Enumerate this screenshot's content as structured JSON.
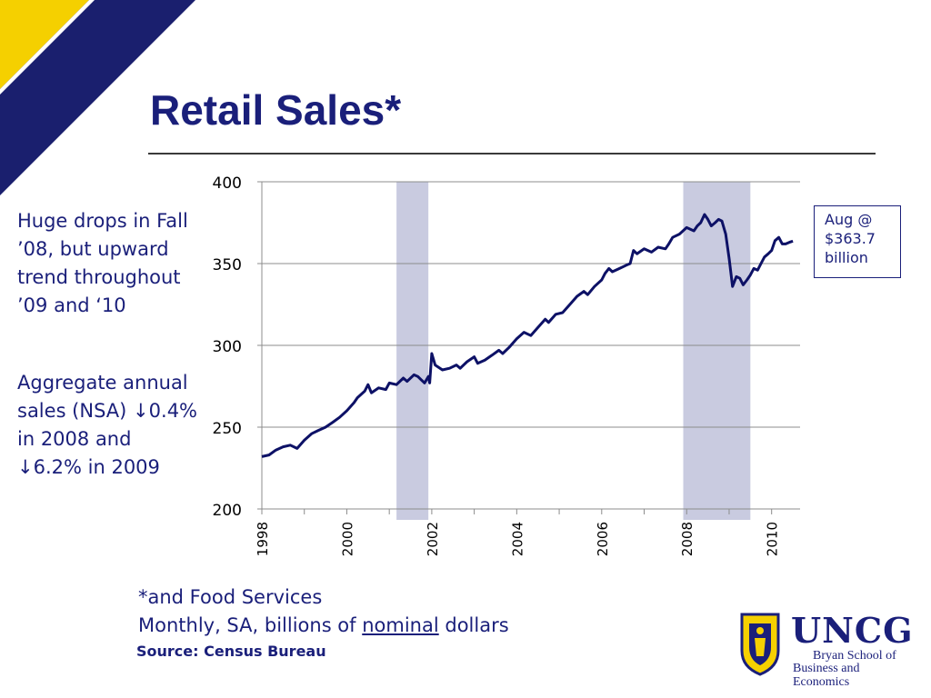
{
  "slide": {
    "title": "Retail Sales*",
    "note1": "Huge drops in Fall ’08, but upward trend throughout ’09 and ‘10",
    "note2_prefix": "Aggregate annual sales (NSA) ",
    "note2_val1": "0.4%",
    "note2_mid": " in 2008 and ",
    "note2_val2": "6.2% in 2009",
    "callout": "Aug @ $363.7 billion",
    "footnote_line1": "*and Food Services",
    "footnote_line2_prefix": "Monthly, SA, billions of ",
    "footnote_line2_under": "nominal",
    "footnote_line2_suffix": " dollars",
    "source": "Source:  Census Bureau",
    "logo_name": "UNCG",
    "logo_sub1": "Bryan School of",
    "logo_sub2": "Business and Economics",
    "colors": {
      "title": "#1a1f7a",
      "line": "#0d1166",
      "recession": "#c9cbe0",
      "corner_yellow": "#f5d000",
      "corner_navy": "#1a1f6e"
    }
  },
  "chart_data": {
    "type": "line",
    "title": "",
    "xlabel": "",
    "ylabel": "",
    "ylim": [
      200,
      400
    ],
    "yticks": [
      "200",
      "250",
      "300",
      "350",
      "400"
    ],
    "xlim": [
      1998,
      2010.67
    ],
    "xticks": [
      "1998",
      "2000",
      "2002",
      "2004",
      "2006",
      "2008",
      "2010"
    ],
    "grid": true,
    "shaded_periods": [
      [
        2001.17,
        2001.92
      ],
      [
        2007.92,
        2009.5
      ]
    ],
    "series": [
      {
        "points": [
          [
            1998.0,
            232
          ],
          [
            1998.17,
            233
          ],
          [
            1998.33,
            236
          ],
          [
            1998.5,
            238
          ],
          [
            1998.67,
            239
          ],
          [
            1998.83,
            237
          ],
          [
            1999.0,
            242
          ],
          [
            1999.17,
            246
          ],
          [
            1999.33,
            248
          ],
          [
            1999.5,
            250
          ],
          [
            1999.67,
            253
          ],
          [
            1999.83,
            256
          ],
          [
            2000.0,
            260
          ],
          [
            2000.17,
            265
          ],
          [
            2000.25,
            268
          ],
          [
            2000.42,
            272
          ],
          [
            2000.5,
            276
          ],
          [
            2000.58,
            271
          ],
          [
            2000.75,
            274
          ],
          [
            2000.92,
            273
          ],
          [
            2001.0,
            277
          ],
          [
            2001.17,
            276
          ],
          [
            2001.33,
            280
          ],
          [
            2001.42,
            278
          ],
          [
            2001.58,
            282
          ],
          [
            2001.67,
            281
          ],
          [
            2001.75,
            279
          ],
          [
            2001.83,
            277
          ],
          [
            2001.92,
            281
          ],
          [
            2001.95,
            277
          ],
          [
            2002.0,
            295
          ],
          [
            2002.08,
            288
          ],
          [
            2002.25,
            285
          ],
          [
            2002.42,
            286
          ],
          [
            2002.58,
            288
          ],
          [
            2002.67,
            286
          ],
          [
            2002.83,
            290
          ],
          [
            2003.0,
            293
          ],
          [
            2003.08,
            289
          ],
          [
            2003.25,
            291
          ],
          [
            2003.42,
            294
          ],
          [
            2003.58,
            297
          ],
          [
            2003.67,
            295
          ],
          [
            2003.83,
            299
          ],
          [
            2004.0,
            304
          ],
          [
            2004.17,
            308
          ],
          [
            2004.33,
            306
          ],
          [
            2004.5,
            311
          ],
          [
            2004.67,
            316
          ],
          [
            2004.75,
            314
          ],
          [
            2004.92,
            319
          ],
          [
            2005.08,
            320
          ],
          [
            2005.25,
            325
          ],
          [
            2005.42,
            330
          ],
          [
            2005.58,
            333
          ],
          [
            2005.67,
            331
          ],
          [
            2005.83,
            336
          ],
          [
            2006.0,
            340
          ],
          [
            2006.08,
            344
          ],
          [
            2006.17,
            347
          ],
          [
            2006.25,
            345
          ],
          [
            2006.42,
            347
          ],
          [
            2006.58,
            349
          ],
          [
            2006.67,
            350
          ],
          [
            2006.75,
            358
          ],
          [
            2006.83,
            356
          ],
          [
            2007.0,
            359
          ],
          [
            2007.17,
            357
          ],
          [
            2007.33,
            360
          ],
          [
            2007.5,
            359
          ],
          [
            2007.58,
            362
          ],
          [
            2007.67,
            366
          ],
          [
            2007.83,
            368
          ],
          [
            2008.0,
            372
          ],
          [
            2008.17,
            370
          ],
          [
            2008.25,
            373
          ],
          [
            2008.33,
            375
          ],
          [
            2008.42,
            380
          ],
          [
            2008.5,
            377
          ],
          [
            2008.58,
            373
          ],
          [
            2008.67,
            375
          ],
          [
            2008.75,
            377
          ],
          [
            2008.83,
            376
          ],
          [
            2008.92,
            368
          ],
          [
            2009.0,
            353
          ],
          [
            2009.08,
            336
          ],
          [
            2009.17,
            342
          ],
          [
            2009.25,
            341
          ],
          [
            2009.33,
            337
          ],
          [
            2009.42,
            340
          ],
          [
            2009.5,
            343
          ],
          [
            2009.58,
            347
          ],
          [
            2009.67,
            346
          ],
          [
            2009.75,
            350
          ],
          [
            2009.83,
            354
          ],
          [
            2009.92,
            356
          ],
          [
            2010.0,
            358
          ],
          [
            2010.08,
            364
          ],
          [
            2010.17,
            366
          ],
          [
            2010.25,
            362
          ],
          [
            2010.33,
            362
          ],
          [
            2010.42,
            363
          ],
          [
            2010.5,
            363.7
          ]
        ]
      }
    ]
  }
}
